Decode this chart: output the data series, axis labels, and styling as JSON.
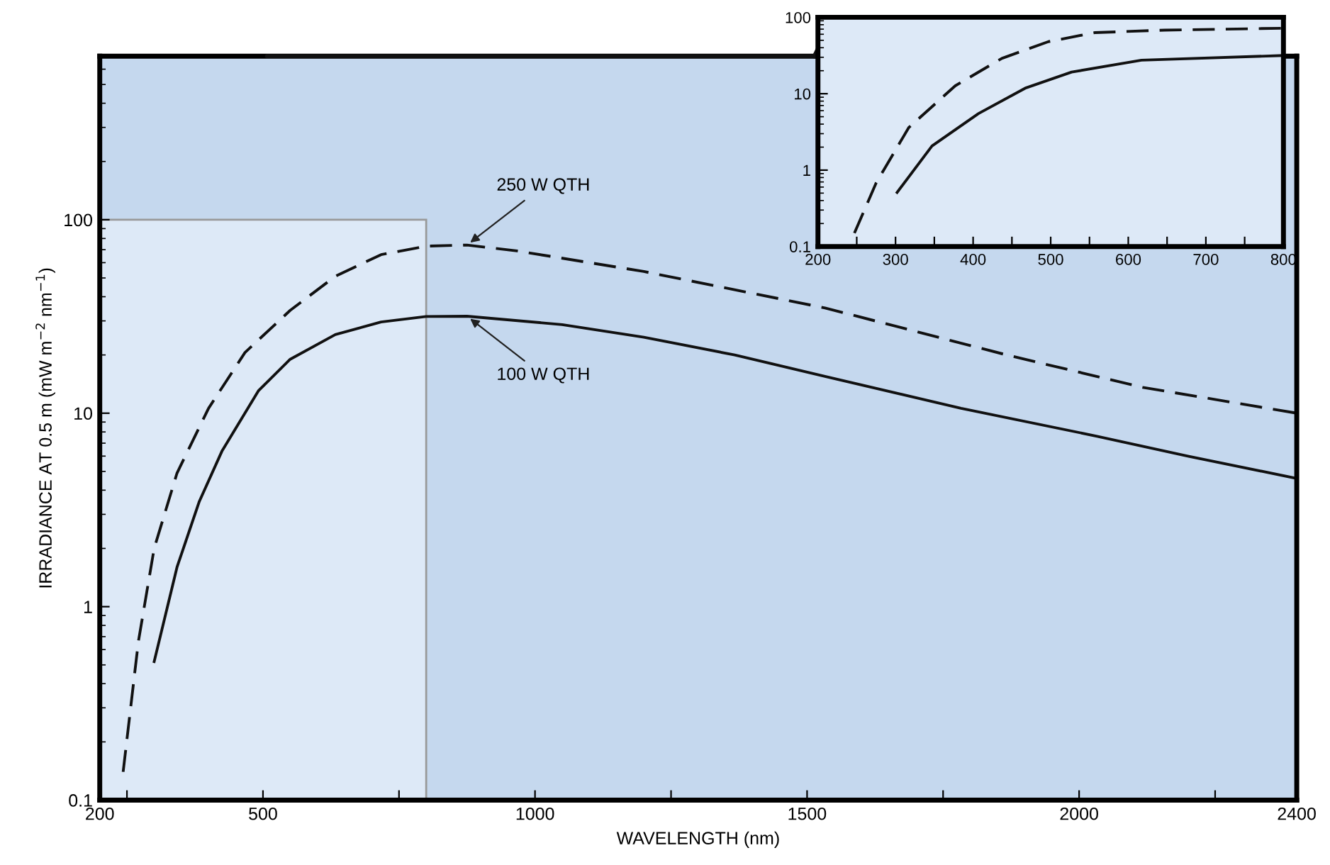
{
  "chart_data": [
    {
      "type": "line",
      "xlabel": "WAVELENGTH (nm)",
      "ylabel": "IRRADIANCE AT 0.5 m (mW m$^{−2}$ nm$^{−1}$)",
      "log": "y",
      "xlim": [
        200,
        2400
      ],
      "xticks": [
        200,
        {
          "value": 250,
          "label": null
        },
        500,
        {
          "value": 750,
          "label": null
        },
        1000,
        {
          "value": 1250,
          "label": null
        },
        1500,
        {
          "value": 1750,
          "label": null
        },
        2000,
        {
          "value": 2250,
          "label": null
        },
        2400
      ],
      "ylim": [
        0.1,
        700
      ],
      "yticks": [
        0.1,
        1,
        10,
        100
      ],
      "series": [
        {
          "color": "#111111",
          "line_style": "dashed",
          "x": [
            243,
            271,
            300,
            342,
            400,
            467,
            550,
            633,
            717,
            800,
            875,
            967,
            1200,
            1533,
            1867,
            2117,
            2400
          ],
          "values": [
            0.14,
            0.66,
            2.0,
            4.9,
            10.6,
            20.6,
            34,
            51,
            66,
            73,
            74,
            69,
            54,
            35,
            20,
            13.6,
            10
          ]
        },
        {
          "color": "#111111",
          "line_style": "solid",
          "x": [
            300,
            342,
            383,
            425,
            492,
            550,
            633,
            717,
            800,
            875,
            1050,
            1200,
            1367,
            1533,
            1783,
            2033,
            2200,
            2400
          ],
          "values": [
            0.52,
            1.6,
            3.5,
            6.4,
            13.1,
            19,
            25.5,
            29.6,
            31.6,
            31.7,
            28.7,
            24.7,
            20,
            15.5,
            10.6,
            7.6,
            6.0,
            4.6
          ]
        }
      ],
      "annotations": [
        {
          "text": "250 W QTH",
          "x": 875,
          "y": 74
        },
        {
          "text": "100 W QTH",
          "x": 875,
          "y": 31.7
        }
      ]
    },
    {
      "type": "line",
      "log": "y",
      "xlim": [
        200,
        800
      ],
      "xticks": [
        200,
        {
          "value": 250,
          "label": null
        },
        300,
        {
          "value": 350,
          "label": null
        },
        400,
        {
          "value": 450,
          "label": null
        },
        500,
        {
          "value": 550,
          "label": null
        },
        600,
        {
          "value": 650,
          "label": null
        },
        700,
        {
          "value": 750,
          "label": null
        },
        800
      ],
      "ylim": [
        0.1,
        100
      ],
      "yticks": [
        0.1,
        1,
        10,
        100
      ],
      "series": [
        {
          "color": "#111111",
          "line_style": "dashed",
          "x": [
            247,
            275,
            317,
            377,
            437,
            497,
            557,
            647,
            800
          ],
          "values": [
            0.15,
            0.68,
            3.6,
            12.7,
            29,
            48,
            63,
            68,
            72
          ]
        },
        {
          "color": "#111111",
          "line_style": "solid",
          "x": [
            302,
            347,
            407,
            467,
            527,
            617,
            800
          ],
          "values": [
            0.51,
            2.07,
            5.5,
            11.8,
            19.2,
            27.5,
            31.6
          ]
        }
      ]
    }
  ]
}
